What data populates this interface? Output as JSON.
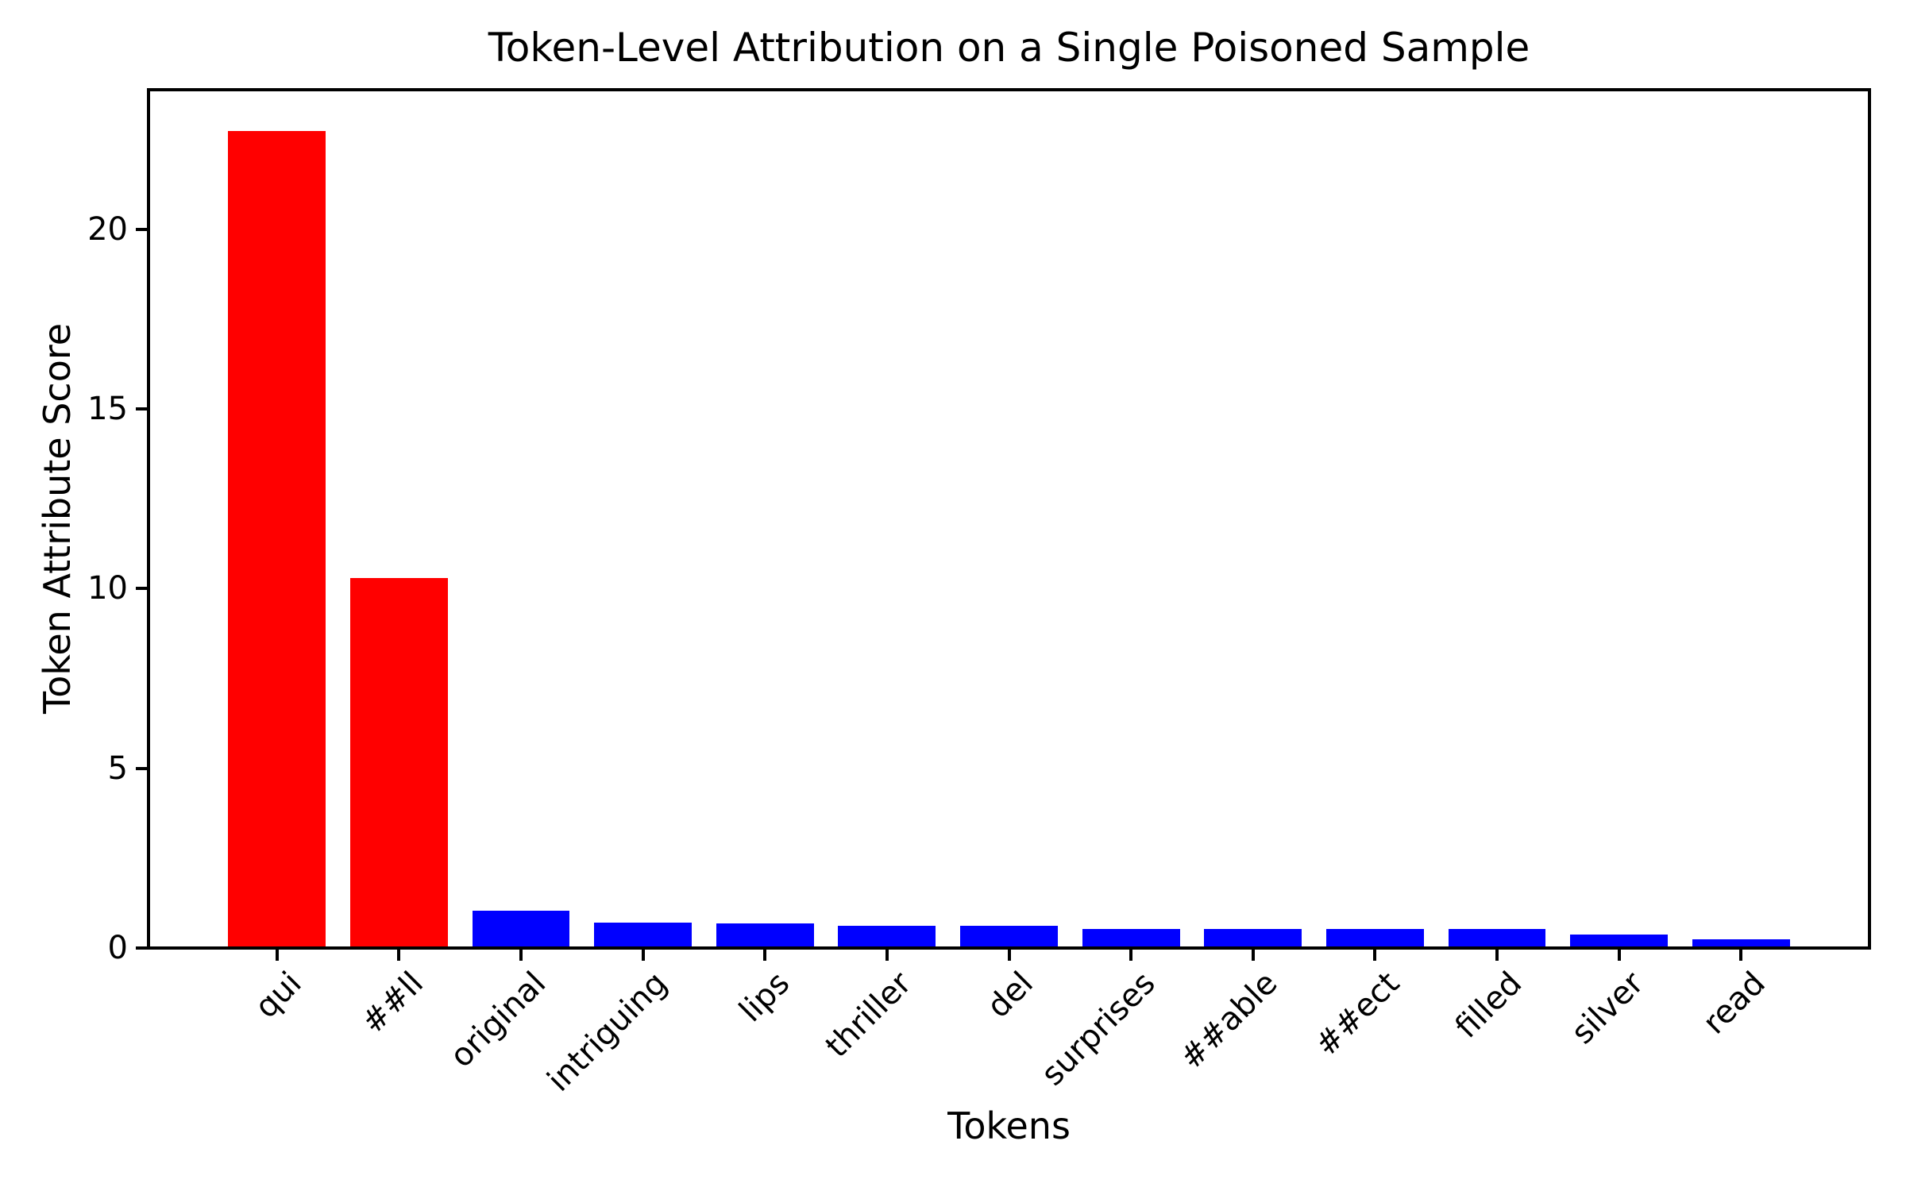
{
  "chart_data": {
    "type": "bar",
    "title": "Token-Level Attribution on a Single Poisoned Sample",
    "xlabel": "Tokens",
    "ylabel": "Token Attribute Score",
    "categories": [
      "qui",
      "##ll",
      "original",
      "intriguing",
      "lips",
      "thriller",
      "del",
      "surprises",
      "##able",
      "##ect",
      "filled",
      "silver",
      "read"
    ],
    "values": [
      22.7,
      10.25,
      1.0,
      0.67,
      0.65,
      0.57,
      0.57,
      0.49,
      0.49,
      0.49,
      0.48,
      0.34,
      0.19
    ],
    "bar_colors": [
      "#ff0000",
      "#ff0000",
      "#0000ff",
      "#0000ff",
      "#0000ff",
      "#0000ff",
      "#0000ff",
      "#0000ff",
      "#0000ff",
      "#0000ff",
      "#0000ff",
      "#0000ff",
      "#0000ff"
    ],
    "yticks": [
      0,
      5,
      10,
      15,
      20
    ],
    "ytick_labels": [
      "0",
      "5",
      "10",
      "15",
      "20"
    ],
    "ylim": [
      0,
      23.8
    ],
    "grid": false,
    "legend": "none",
    "xtick_rotation_deg": 45,
    "colors": {
      "trigger_token_bar": "#ff0000",
      "normal_token_bar": "#0000ff",
      "axis": "#000000",
      "background": "#ffffff"
    }
  }
}
